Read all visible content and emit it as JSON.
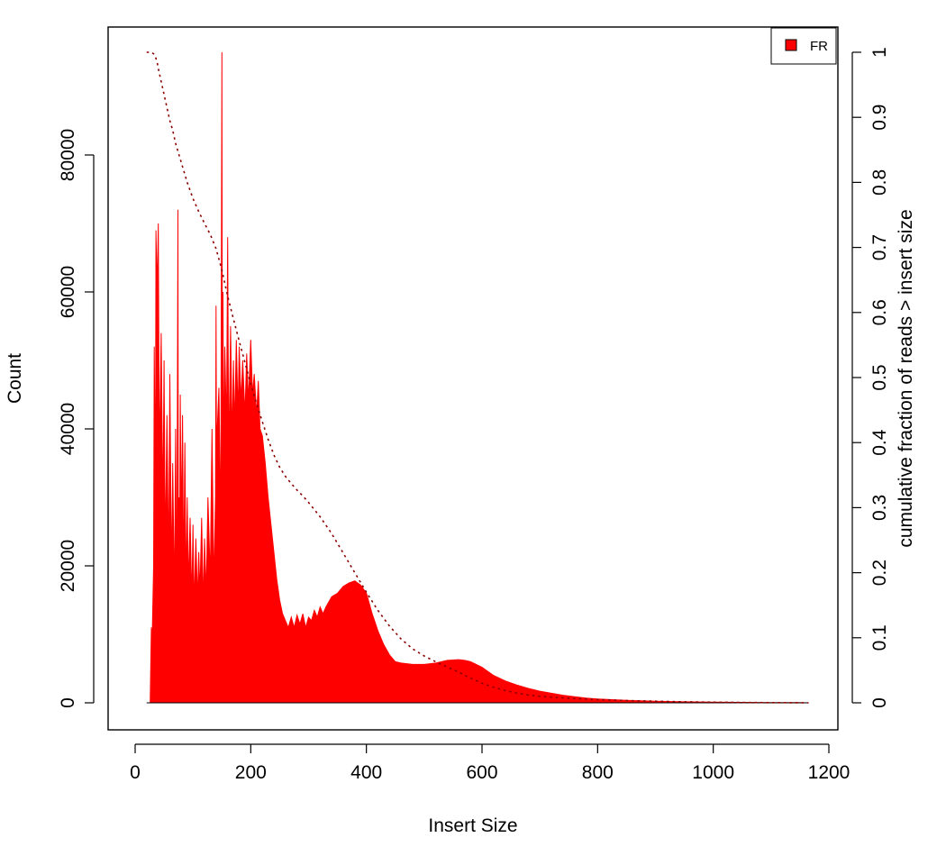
{
  "chart_data": {
    "type": "area",
    "xlabel": "Insert Size",
    "ylabel": "Count",
    "y2label": "cumulative fraction of reads > insert size",
    "xlim": [
      0,
      1200
    ],
    "ylim": [
      0,
      95000
    ],
    "y2lim": [
      0,
      1
    ],
    "x_ticks": [
      0,
      200,
      400,
      600,
      800,
      1000,
      1200
    ],
    "y_ticks": [
      0,
      20000,
      40000,
      60000,
      80000
    ],
    "y2_ticks": [
      0,
      0.1,
      0.2,
      0.3,
      0.4,
      0.5,
      0.6,
      0.7,
      0.8,
      0.9,
      1
    ],
    "legend": {
      "position": "top-right",
      "entries": [
        {
          "label": "FR",
          "color": "#ff0000"
        }
      ]
    },
    "series": [
      {
        "name": "FR",
        "style": "filled-histogram",
        "color": "#ff0000",
        "x": [
          20,
          26,
          28,
          29,
          30,
          32,
          33,
          35,
          36,
          38,
          40,
          42,
          45,
          48,
          50,
          52,
          55,
          58,
          60,
          63,
          65,
          68,
          70,
          72,
          74,
          75,
          76,
          77,
          78,
          80,
          82,
          84,
          86,
          88,
          90,
          92,
          95,
          98,
          100,
          102,
          105,
          108,
          110,
          112,
          115,
          118,
          120,
          123,
          126,
          130,
          133,
          136,
          139,
          140,
          141,
          142,
          145,
          148,
          150,
          151,
          152,
          153,
          155,
          158,
          160,
          162,
          165,
          168,
          170,
          172,
          175,
          178,
          180,
          183,
          186,
          190,
          193,
          196,
          200,
          203,
          206,
          210,
          213,
          216,
          220,
          225,
          230,
          235,
          240,
          245,
          250,
          255,
          260,
          265,
          270,
          275,
          280,
          285,
          290,
          295,
          300,
          305,
          310,
          315,
          320,
          325,
          330,
          340,
          350,
          360,
          370,
          380,
          385,
          390,
          400,
          410,
          420,
          430,
          440,
          450,
          460,
          480,
          500,
          520,
          540,
          560,
          570,
          580,
          600,
          620,
          640,
          660,
          680,
          700,
          720,
          740,
          760,
          780,
          800,
          850,
          900,
          950,
          1000,
          1050,
          1100,
          1150,
          1165
        ],
        "values": [
          0,
          0,
          11000,
          7000,
          12000,
          20000,
          52000,
          30000,
          69000,
          60000,
          70000,
          35000,
          54000,
          28000,
          50000,
          22000,
          42000,
          20000,
          48000,
          18000,
          35000,
          15000,
          40000,
          12000,
          72000,
          2000,
          30000,
          20000,
          45000,
          25000,
          42000,
          18000,
          38000,
          16000,
          30000,
          17000,
          27000,
          15000,
          26000,
          14000,
          24000,
          15000,
          22000,
          16000,
          27000,
          14000,
          24000,
          16000,
          30000,
          18000,
          40000,
          17000,
          30000,
          58000,
          25000,
          40000,
          46000,
          25000,
          95000,
          30000,
          60000,
          35000,
          52000,
          40000,
          68000,
          35000,
          55000,
          38000,
          50000,
          40000,
          53000,
          42000,
          52000,
          44000,
          50000,
          42000,
          51000,
          44000,
          53000,
          45000,
          48000,
          42000,
          47000,
          40000,
          39000,
          35000,
          30000,
          26000,
          22000,
          18000,
          15000,
          13000,
          12000,
          11000,
          12500,
          11000,
          12800,
          11500,
          13000,
          11000,
          12500,
          12000,
          13500,
          12500,
          14000,
          13000,
          14000,
          15500,
          16000,
          17000,
          17500,
          17800,
          17500,
          17200,
          16000,
          13000,
          10500,
          8500,
          7000,
          6000,
          5800,
          5600,
          5600,
          5800,
          6200,
          6300,
          6200,
          6000,
          5200,
          4000,
          3200,
          2600,
          2100,
          1700,
          1400,
          1100,
          900,
          700,
          550,
          350,
          220,
          150,
          100,
          70,
          45,
          30,
          0
        ]
      },
      {
        "name": "cumulative",
        "style": "dotted-line",
        "axis": "right",
        "color": "#8b0000",
        "x": [
          20,
          28,
          33,
          35,
          38,
          40,
          45,
          50,
          55,
          60,
          65,
          70,
          75,
          80,
          90,
          100,
          110,
          120,
          130,
          140,
          145,
          150,
          155,
          160,
          170,
          180,
          190,
          200,
          210,
          220,
          230,
          240,
          250,
          260,
          270,
          280,
          290,
          300,
          320,
          340,
          360,
          380,
          400,
          420,
          440,
          460,
          480,
          500,
          520,
          540,
          560,
          580,
          600,
          620,
          640,
          660,
          680,
          700,
          750,
          800,
          850,
          900,
          950,
          1000,
          1050,
          1100,
          1165
        ],
        "values": [
          1.0,
          1.0,
          0.997,
          0.993,
          0.985,
          0.975,
          0.955,
          0.935,
          0.915,
          0.895,
          0.88,
          0.86,
          0.845,
          0.83,
          0.8,
          0.775,
          0.755,
          0.737,
          0.72,
          0.698,
          0.682,
          0.665,
          0.645,
          0.625,
          0.59,
          0.556,
          0.523,
          0.49,
          0.46,
          0.432,
          0.405,
          0.381,
          0.362,
          0.348,
          0.337,
          0.327,
          0.318,
          0.308,
          0.286,
          0.26,
          0.23,
          0.2,
          0.17,
          0.142,
          0.118,
          0.098,
          0.083,
          0.072,
          0.063,
          0.055,
          0.047,
          0.038,
          0.03,
          0.024,
          0.019,
          0.015,
          0.012,
          0.01,
          0.007,
          0.005,
          0.0035,
          0.0025,
          0.0015,
          0.001,
          0.0006,
          0.0003,
          0
        ]
      }
    ]
  }
}
